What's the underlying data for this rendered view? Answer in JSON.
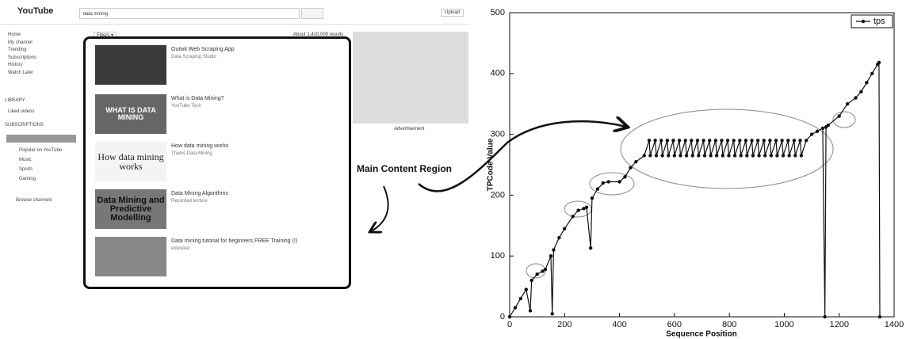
{
  "screenshot": {
    "logo": "YouTube",
    "search": "data mining",
    "upload": "Upload",
    "filters": "Filters ▾",
    "results": "About 1,410,000 results",
    "sidebar": [
      "Home",
      "My channel",
      "Trending",
      "Subscriptions",
      "History",
      "Watch Later"
    ],
    "library_heading": "LIBRARY",
    "liked": "Liked videos",
    "subs_heading": "SUBSCRIPTIONS",
    "subs": [
      "Popular on YouTube",
      "Music",
      "Sports",
      "Gaming"
    ],
    "browse": "Browse channels",
    "videos": [
      {
        "title": "Outwit Web Scraping App",
        "meta": "Data Scraping Studio",
        "thumb": ""
      },
      {
        "title": "What is Data Mining?",
        "meta": "YouTube Tech",
        "thumb": "WHAT IS DATA MINING"
      },
      {
        "title": "How data mining works",
        "meta": "Thales Data Mining",
        "thumb": "How data mining works"
      },
      {
        "title": "Data Mining Algorithms",
        "meta": "Recorded lecture",
        "thumb": "Data Mining and Predictive Modelling"
      },
      {
        "title": "Data mining tutorial for beginners FREE Training (!)",
        "meta": "edureka!",
        "thumb": ""
      }
    ],
    "advertisement": "Advertisement",
    "annotation": "Main Content Region"
  },
  "chart_data": {
    "type": "line",
    "ylabel": "TPCode Value",
    "xlabel": "Sequence Position",
    "xlim": [
      0,
      1400
    ],
    "ylim": [
      0,
      500
    ],
    "xticks": [
      0,
      200,
      400,
      600,
      800,
      1000,
      1200,
      1400
    ],
    "yticks": [
      0,
      100,
      200,
      300,
      400,
      500
    ],
    "legend": "upper right",
    "x": [
      0,
      20,
      40,
      60,
      75,
      80,
      100,
      120,
      130,
      150,
      155,
      160,
      180,
      200,
      230,
      250,
      270,
      280,
      295,
      300,
      320,
      340,
      360,
      400,
      420,
      440,
      460,
      490,
      508,
      512,
      530,
      534,
      552,
      556,
      574,
      578,
      596,
      600,
      618,
      622,
      640,
      644,
      662,
      666,
      684,
      688,
      706,
      710,
      728,
      732,
      750,
      754,
      772,
      776,
      794,
      798,
      816,
      820,
      838,
      842,
      860,
      864,
      882,
      886,
      904,
      908,
      926,
      930,
      948,
      952,
      970,
      974,
      992,
      996,
      1014,
      1018,
      1036,
      1040,
      1058,
      1062,
      1080,
      1100,
      1120,
      1140,
      1148,
      1152,
      1160,
      1200,
      1230,
      1260,
      1280,
      1300,
      1320,
      1340,
      1345,
      1348
    ],
    "series": [
      {
        "name": "tps",
        "color": "#111111",
        "values": [
          0,
          15,
          30,
          45,
          10,
          60,
          70,
          75,
          78,
          100,
          5,
          110,
          130,
          145,
          165,
          175,
          178,
          180,
          113,
          195,
          210,
          220,
          222,
          222,
          230,
          245,
          255,
          265,
          290,
          265,
          290,
          265,
          290,
          265,
          290,
          265,
          290,
          265,
          290,
          265,
          290,
          265,
          290,
          265,
          290,
          265,
          290,
          265,
          290,
          265,
          290,
          265,
          290,
          265,
          290,
          265,
          290,
          265,
          290,
          265,
          290,
          265,
          290,
          265,
          290,
          265,
          290,
          265,
          290,
          265,
          290,
          265,
          290,
          265,
          290,
          265,
          290,
          265,
          290,
          265,
          290,
          300,
          305,
          310,
          0,
          312,
          315,
          330,
          350,
          360,
          370,
          385,
          400,
          415,
          418,
          0
        ]
      }
    ]
  }
}
